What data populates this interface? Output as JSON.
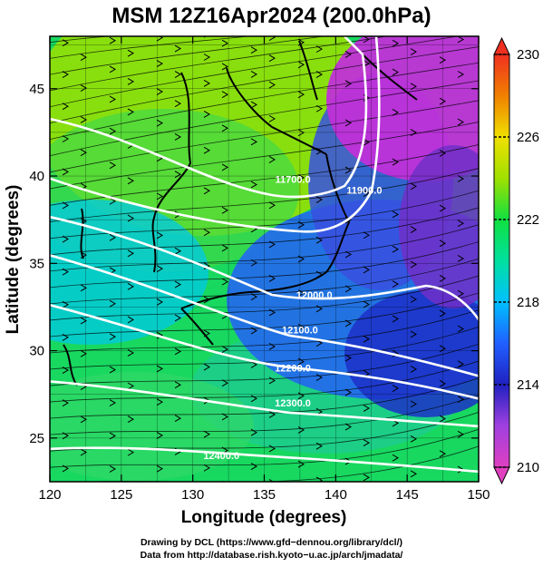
{
  "title": "MSM 12Z16Apr2024 (200.0hPa)",
  "axes": {
    "xlabel": "Longitude (degrees)",
    "ylabel": "Latitude  (degrees)",
    "xlim": [
      120,
      150
    ],
    "ylim": [
      22.5,
      48
    ],
    "xticks": [
      "120",
      "125",
      "130",
      "135",
      "140",
      "145",
      "150"
    ],
    "yticks": [
      "25",
      "30",
      "35",
      "40",
      "45"
    ]
  },
  "colorbar": {
    "range": [
      210,
      230
    ],
    "ticks": [
      "210",
      "214",
      "218",
      "222",
      "226",
      "230"
    ],
    "colors": [
      "#e040c0",
      "#a040e0",
      "#2020c0",
      "#2060ff",
      "#00c0ff",
      "#00e0a0",
      "#10e040",
      "#a0e000",
      "#f0e000",
      "#f08000",
      "#f03020"
    ]
  },
  "contours": [
    {
      "label": "11700.0",
      "lon": 137,
      "lat": 39.6
    },
    {
      "label": "11900.0",
      "lon": 142,
      "lat": 39.0
    },
    {
      "label": "12000.0",
      "lon": 138.5,
      "lat": 33.0
    },
    {
      "label": "12100.0",
      "lon": 137.5,
      "lat": 31.0
    },
    {
      "label": "12200.0",
      "lon": 137,
      "lat": 28.8
    },
    {
      "label": "12300.0",
      "lon": 137,
      "lat": 26.8
    },
    {
      "label": "12400.0",
      "lon": 132,
      "lat": 23.8
    }
  ],
  "credits": {
    "line1": "Drawing by DCL (https://www.gfd−dennou.org/library/dcl/)",
    "line2": "Data from http://database.rish.kyoto−u.ac.jp/arch/jmadata/"
  }
}
